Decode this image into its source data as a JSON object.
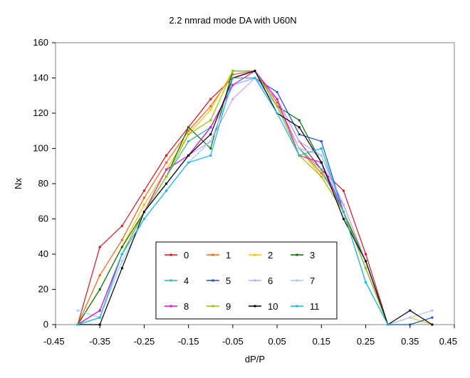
{
  "chart_data": {
    "type": "line",
    "title": "2.2 nmrad mode DA with U60N",
    "xlabel": "dP/P",
    "ylabel": "Nx",
    "xlim": [
      -0.45,
      0.45
    ],
    "ylim": [
      0,
      160
    ],
    "x_ticks": [
      "-0.45",
      "-0.35",
      "-0.25",
      "-0.15",
      "-0.05",
      "0.05",
      "0.15",
      "0.25",
      "0.35",
      "0.45"
    ],
    "y_ticks": [
      "0",
      "20",
      "40",
      "60",
      "80",
      "100",
      "120",
      "140",
      "160"
    ],
    "grid": false,
    "legend": "lower-center",
    "legend_columns": 4,
    "x": [
      -0.4,
      -0.35,
      -0.3,
      -0.25,
      -0.2,
      -0.15,
      -0.1,
      -0.05,
      0.0,
      0.05,
      0.1,
      0.15,
      0.2,
      0.25,
      0.3,
      0.35,
      0.4
    ],
    "series": [
      {
        "name": "0",
        "color": "#e0101a",
        "values": [
          0,
          44,
          56,
          76,
          96,
          112,
          128,
          140,
          144,
          128,
          104,
          88,
          76,
          40,
          0,
          null,
          null
        ]
      },
      {
        "name": "1",
        "color": "#ff6010",
        "values": [
          0,
          28,
          48,
          72,
          92,
          110,
          124,
          142,
          144,
          126,
          100,
          86,
          68,
          36,
          0,
          null,
          null
        ]
      },
      {
        "name": "2",
        "color": "#ffc000",
        "values": [
          0,
          20,
          44,
          68,
          88,
          108,
          122,
          144,
          144,
          124,
          100,
          84,
          64,
          32,
          0,
          4,
          0
        ]
      },
      {
        "name": "3",
        "color": "#007000",
        "values": [
          0,
          20,
          44,
          64,
          84,
          112,
          100,
          144,
          144,
          124,
          116,
          92,
          64,
          36,
          0,
          null,
          null
        ]
      },
      {
        "name": "4",
        "color": "#30b0b0",
        "values": [
          0,
          8,
          40,
          64,
          84,
          104,
          112,
          136,
          140,
          124,
          100,
          88,
          64,
          24,
          0,
          null,
          null
        ]
      },
      {
        "name": "5",
        "color": "#1a4fc8",
        "values": [
          0,
          8,
          40,
          64,
          80,
          96,
          112,
          136,
          140,
          132,
          108,
          104,
          64,
          32,
          0,
          0,
          4
        ]
      },
      {
        "name": "6",
        "color": "#c8a0ff",
        "values": [
          0,
          8,
          40,
          64,
          88,
          96,
          104,
          128,
          140,
          128,
          104,
          96,
          68,
          36,
          0,
          null,
          null
        ]
      },
      {
        "name": "7",
        "color": "#a0c8ff",
        "values": [
          8,
          4,
          36,
          60,
          76,
          92,
          104,
          136,
          140,
          124,
          100,
          96,
          64,
          32,
          0,
          4,
          8
        ]
      },
      {
        "name": "8",
        "color": "#e010e0",
        "values": [
          0,
          8,
          40,
          64,
          88,
          96,
          112,
          136,
          144,
          128,
          96,
          92,
          64,
          32,
          0,
          null,
          null
        ]
      },
      {
        "name": "9",
        "color": "#90c800",
        "values": [
          0,
          4,
          40,
          64,
          84,
          108,
          116,
          144,
          144,
          124,
          96,
          84,
          64,
          32,
          0,
          null,
          null
        ]
      },
      {
        "name": "10",
        "color": "#000000",
        "values": [
          0,
          0,
          32,
          64,
          80,
          96,
          108,
          140,
          144,
          120,
          112,
          92,
          60,
          36,
          0,
          8,
          0
        ]
      },
      {
        "name": "11",
        "color": "#10b8f0",
        "values": [
          0,
          4,
          40,
          60,
          76,
          92,
          96,
          140,
          140,
          120,
          96,
          100,
          64,
          24,
          0,
          null,
          null
        ]
      }
    ]
  }
}
